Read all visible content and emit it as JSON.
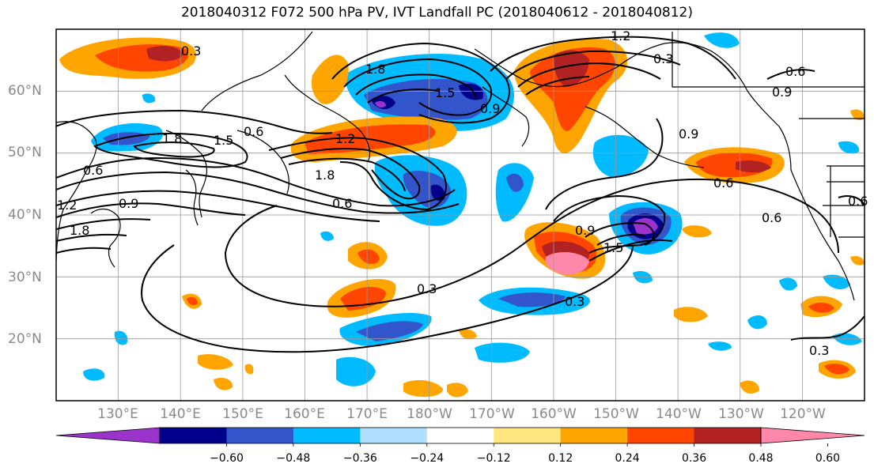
{
  "title": "2018040312 F072 500 hPa PV, IVT Landfall PC (2018040612 - 2018040812)",
  "lat_labels": [
    "60°N",
    "50°N",
    "40°N",
    "30°N",
    "20°N"
  ],
  "lon_labels": [
    "130°E",
    "140°E",
    "150°E",
    "160°E",
    "170°E",
    "180°W",
    "170°W",
    "160°W",
    "150°W",
    "140°W",
    "130°W",
    "120°W"
  ],
  "colorbar": {
    "ticks": [
      "−0.60",
      "−0.48",
      "−0.36",
      "−0.24",
      "−0.12",
      "0.12",
      "0.24",
      "0.36",
      "0.48",
      "0.60"
    ],
    "colors": [
      "#9933cc",
      "#00008b",
      "#3355cc",
      "#00bbff",
      "#b0e0ff",
      "#ffffff",
      "#ffe680",
      "#ffa500",
      "#ff4500",
      "#b22222",
      "#ff88aa"
    ]
  },
  "contour_labels": [
    "0.3",
    "1.8",
    "1.5",
    "0.9",
    "1.2",
    "0.3",
    "0.9",
    "0.6",
    "1.8",
    "1.5",
    "0.6",
    "1.2",
    "1.8",
    "0.6",
    "0.6",
    "0.9",
    "1.2",
    "1.8",
    "0.9",
    "0.9",
    "1.5",
    "0.3",
    "0.3",
    "0.6",
    "0.6",
    "0.3",
    "0.6"
  ],
  "chart_data": {
    "type": "heatmap",
    "variables": [
      "500 hPa PV",
      "IVT Landfall PC"
    ],
    "lat_range": [
      10,
      70
    ],
    "lon_range": [
      120,
      250
    ],
    "contour_values": [
      0.3,
      0.6,
      0.9,
      1.2,
      1.5,
      1.8
    ],
    "colorbar_levels": [
      -0.6,
      -0.48,
      -0.36,
      -0.24,
      -0.12,
      0.12,
      0.24,
      0.36,
      0.48,
      0.6
    ]
  }
}
